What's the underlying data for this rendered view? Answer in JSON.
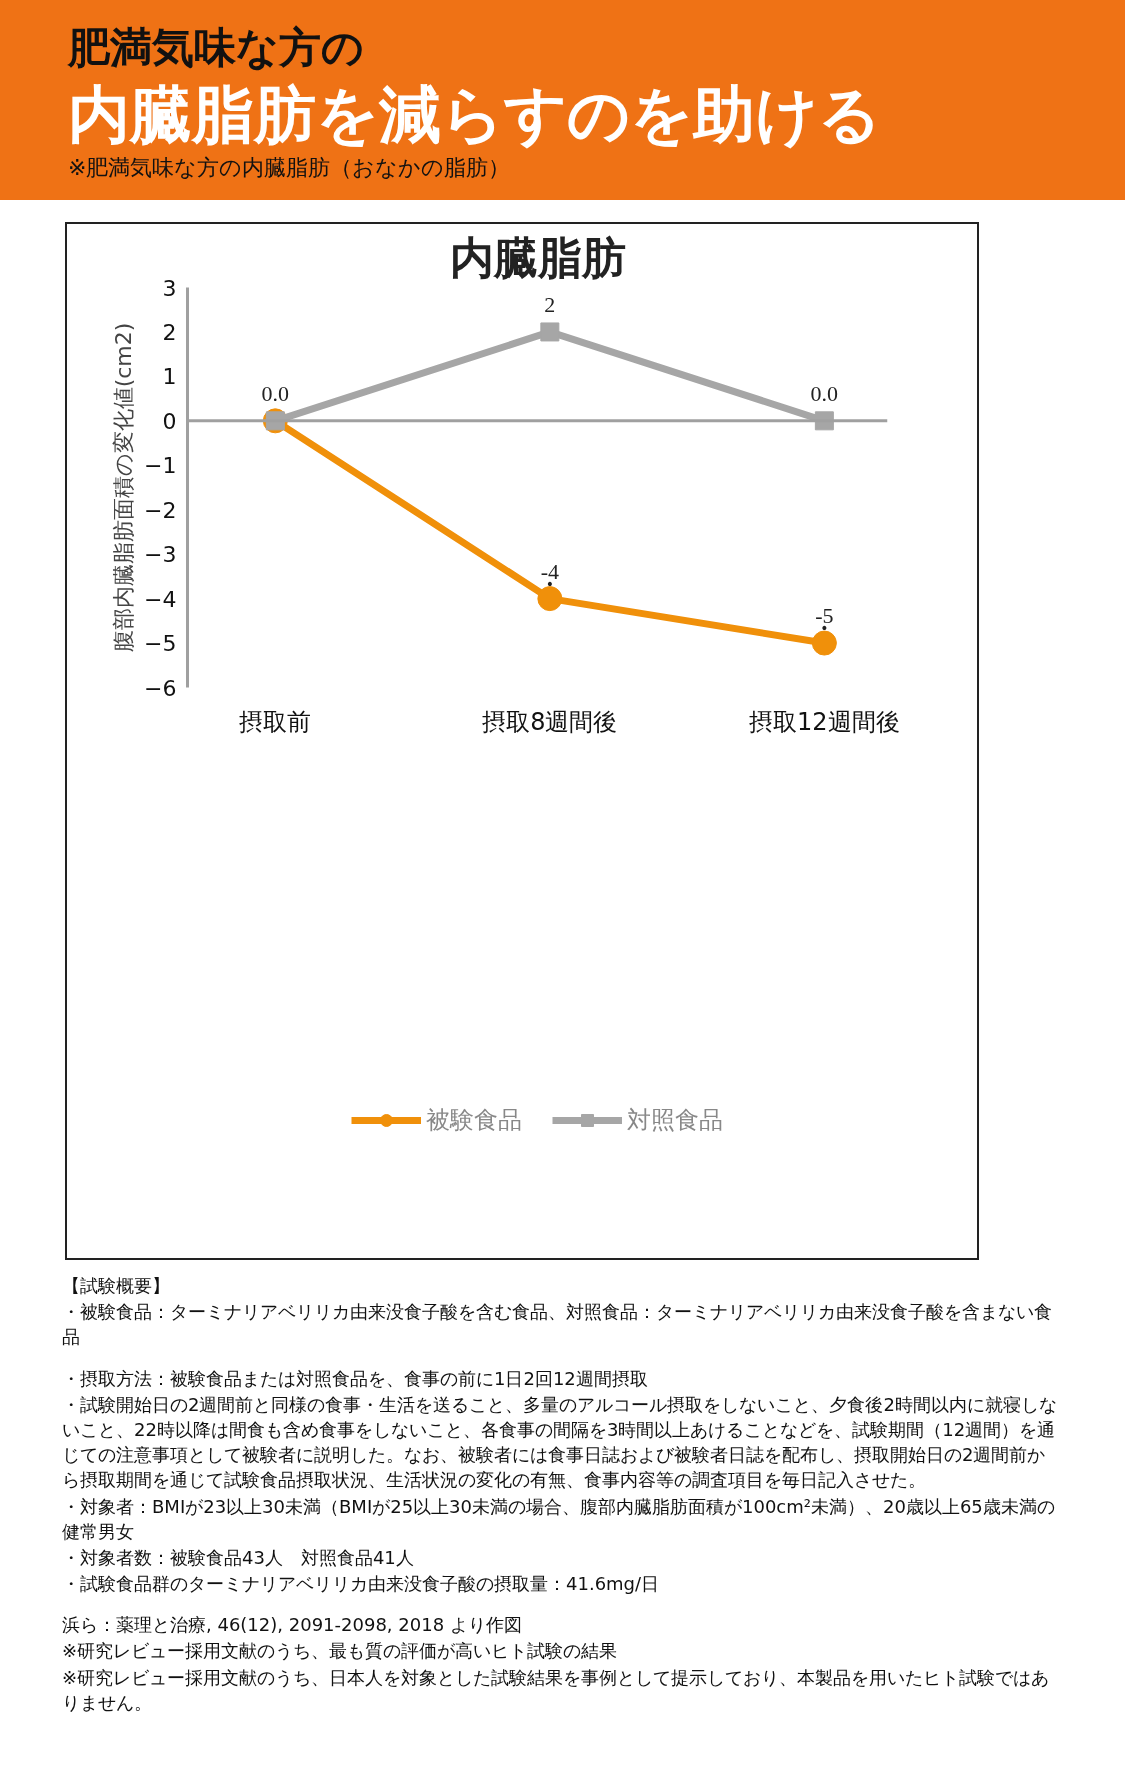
{
  "chart_data": {
    "type": "line",
    "title": "内臓脂肪",
    "ylabel": "腹部内臓脂肪面積の変化値(cm2)",
    "categories": [
      "摂取前",
      "摂取8週間後",
      "摂取12週間後"
    ],
    "series": [
      {
        "name": "被験食品",
        "color": "#f0900a",
        "marker": "circle",
        "values": [
          0,
          -4,
          -5
        ],
        "value_labels": [
          "0.0",
          "-4",
          "-5"
        ]
      },
      {
        "name": "対照食品",
        "color": "#a6a6a6",
        "marker": "square",
        "values": [
          0,
          2,
          0
        ],
        "value_labels": [
          null,
          "2",
          "0.0"
        ]
      }
    ],
    "ylim": [
      -6,
      3
    ],
    "yticks": [
      -6,
      -5,
      -4,
      -3,
      -2,
      -1,
      0,
      1,
      2,
      3
    ],
    "grid": false,
    "legend": "bottom",
    "ref_lines": [
      {
        "axis": "y",
        "value": 0,
        "color": "#a0a0a0"
      }
    ],
    "line_style": "solid",
    "annotations": [
      "肥満気味な方の",
      "内臓脂肪を減らすのを助ける",
      "※肥満気味な方の内臓脂肪（おなかの脂肪）",
      {
        "text": "•",
        "x": "摂取8週間後",
        "y": -4
      },
      {
        "text": "•",
        "x": "摂取12週間後",
        "y": -5
      },
      "【試験概要】",
      "・被験食品：ターミナリアベリリカ由来没食子酸を含む食品、対照食品：ターミナリアベリリカ由来没食子酸を含まない食品",
      "・摂取方法：被験食品または対照食品を、食事の前に1日2回12週間摂取",
      "・試験開始日の2週間前と同様の食事・生活を送ること、多量のアルコール摂取をしないこと、夕食後2時間以内に就寝しないこと、22時以降は間食も含め食事をしないこと、各食事の間隔を3時間以上あけることなどを、試験期間（12週間）を通じての注意事項として被験者に説明した。なお、被験者には食事日誌および被験者日誌を配布し、摂取開始日の2週間前から摂取期間を通じて試験食品摂取状況、生活状況の変化の有無、食事内容等の調査項目を毎日記入させた。",
      "・対象者：BMIが23以上30未満（BMIが25以上30未満の場合、腹部内臓脂肪面積が100cm²未満）、20歳以上65歳未満の健常男女",
      "・対象者数：被験食品43人　対照食品41人",
      "・試験食品群のターミナリアベリリカ由来没食子酸の摂取量：41.6mg/日",
      "浜ら：薬理と治療, 46(12), 2091-2098, 2018 より作図",
      "※研究レビュー採用文献のうち、最も質の評価が高いヒト試験の結果",
      "※研究レビュー採用文献のうち、日本人を対象とした試験結果を事例として提示しており、本製品を用いたヒト試験ではありません。"
    ]
  }
}
